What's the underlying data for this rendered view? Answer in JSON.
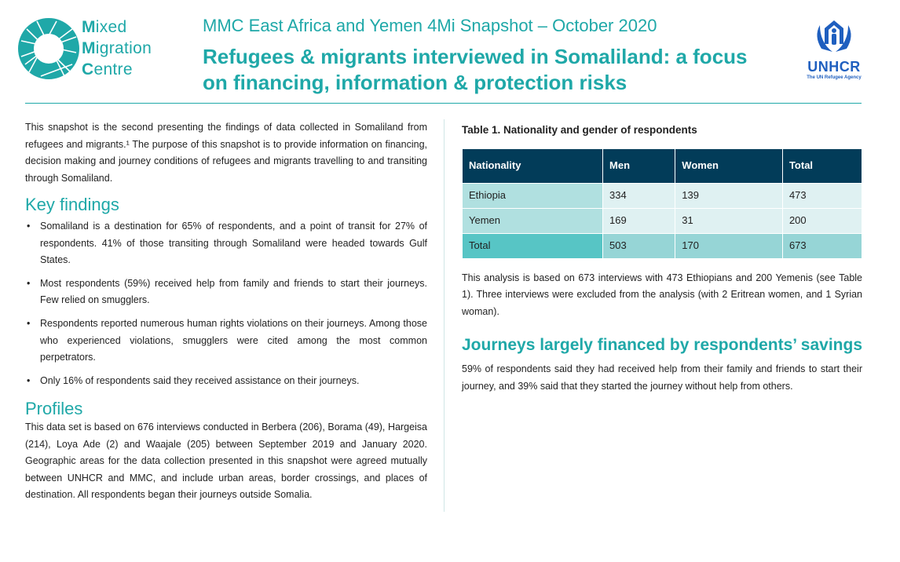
{
  "header": {
    "logo_text": [
      "Mixed",
      "Migration",
      "Centre"
    ],
    "subtitle": "MMC East Africa and Yemen 4Mi Snapshot – October 2020",
    "title": "Refugees & migrants interviewed in Somaliland: a focus on financing, information & protection risks",
    "partner_logo": {
      "name": "UNHCR",
      "tagline": "The UN Refugee Agency"
    }
  },
  "colors": {
    "teal": "#1fa8a8",
    "navy": "#023c59",
    "unhcr_blue": "#1f5fbf"
  },
  "left": {
    "intro": "This snapshot is the second presenting the findings of data collected in Somaliland from refugees and migrants.¹  The purpose of this snapshot is to provide information on financing, decision making and journey conditions of refugees and migrants travelling to and transiting through Somaliland.",
    "key_findings_heading": "Key findings",
    "key_findings": [
      "Somaliland is a destination for 65% of respondents, and a point of transit for 27% of respondents. 41% of those transiting through Somaliland were headed towards Gulf States.",
      "Most respondents (59%) received help from family and friends to start their journeys. Few relied on smugglers.",
      "Respondents reported numerous human rights violations on their journeys. Among those who experienced violations, smugglers were cited among the most common perpetrators.",
      "Only 16% of respondents said they received assistance on their journeys."
    ],
    "profiles_heading": "Profiles",
    "profiles_text": "This data set is based on 676 interviews conducted in Berbera (206), Borama (49), Hargeisa (214), Loya Ade (2) and Waajale (205) between September 2019 and January 2020. Geographic areas for the data collection presented in this snapshot were agreed mutually between UNHCR and MMC, and include urban areas, border crossings, and places of destination. All respondents began their journeys outside Somalia."
  },
  "right": {
    "table_caption": "Table 1. Nationality and gender of respondents",
    "table": {
      "headers": [
        "Nationality",
        "Men",
        "Women",
        "Total"
      ],
      "rows": [
        [
          "Ethiopia",
          "334",
          "139",
          "473"
        ],
        [
          "Yemen",
          "169",
          "31",
          "200"
        ],
        [
          "Total",
          "503",
          "170",
          "673"
        ]
      ]
    },
    "analysis_text": "This analysis is based on 673 interviews with 473 Ethiopians and 200 Yemenis (see Table 1). Three interviews were excluded from the analysis (with 2 Eritrean women, and 1 Syrian woman).",
    "journeys_heading": "Journeys largely financed by respondents’ savings",
    "journeys_text": "59% of respondents said they had received help from their family and friends to start their journey, and 39% said that they started the journey without help from others."
  }
}
